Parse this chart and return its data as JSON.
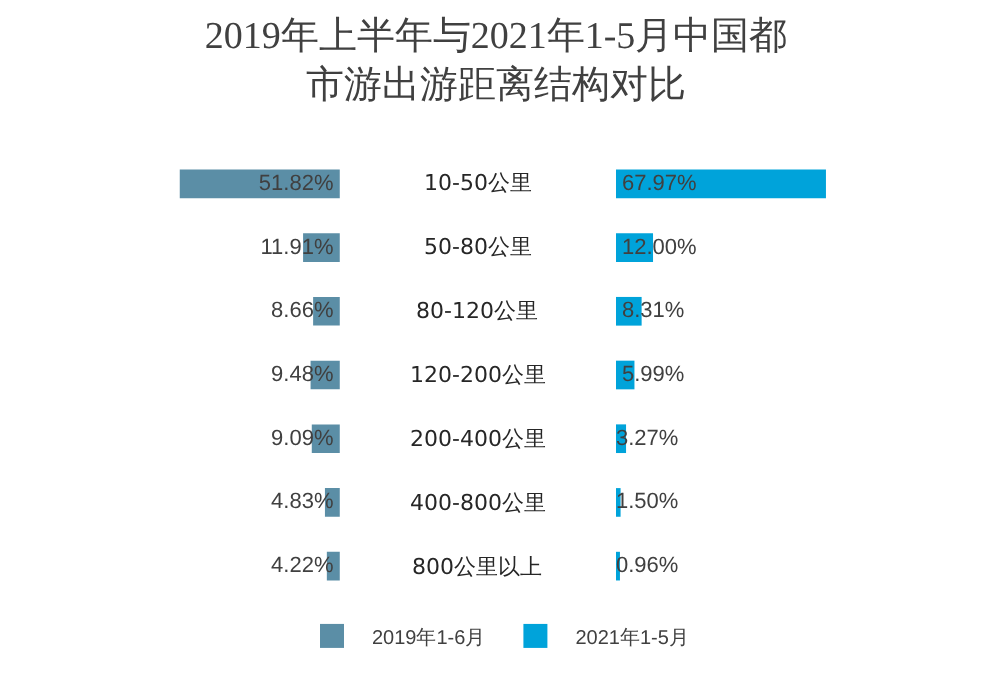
{
  "chart_data": [
    {
      "type": "bar",
      "orientation": "horizontal",
      "title": "2019年上半年与2021年1-5月中国都市游出游距离结构对比",
      "categories": [
        "10-50公里",
        "50-80公里",
        "80-120公里",
        "120-200公里",
        "200-400公里",
        "400-800公里",
        "800公里以上"
      ],
      "series": [
        {
          "name": "2019年1-6月",
          "color": "#5b8ea6",
          "values": [
            51.82,
            11.91,
            8.66,
            9.48,
            9.09,
            4.83,
            4.22
          ],
          "value_labels": [
            "51.82%",
            "11.91%",
            "8.66%",
            "9.48%",
            "9.09%",
            "4.83%",
            "4.22%"
          ]
        }
      ],
      "tick_labels": "y",
      "legend": "bottom"
    },
    {
      "type": "bar",
      "orientation": "horizontal",
      "categories": [
        null,
        null,
        null,
        null,
        null,
        null,
        null
      ],
      "series": [
        {
          "name": "2021年1-5月",
          "color": "#00a3da",
          "values": [
            67.97,
            12.0,
            8.31,
            5.99,
            3.27,
            1.5,
            0.96
          ],
          "value_labels": [
            "67.97%",
            "12.00%",
            "8.31%",
            "5.99%",
            "3.27%",
            "1.50%",
            "0.96%"
          ]
        }
      ],
      "tick_labels": false,
      "legend": "bottom"
    }
  ]
}
